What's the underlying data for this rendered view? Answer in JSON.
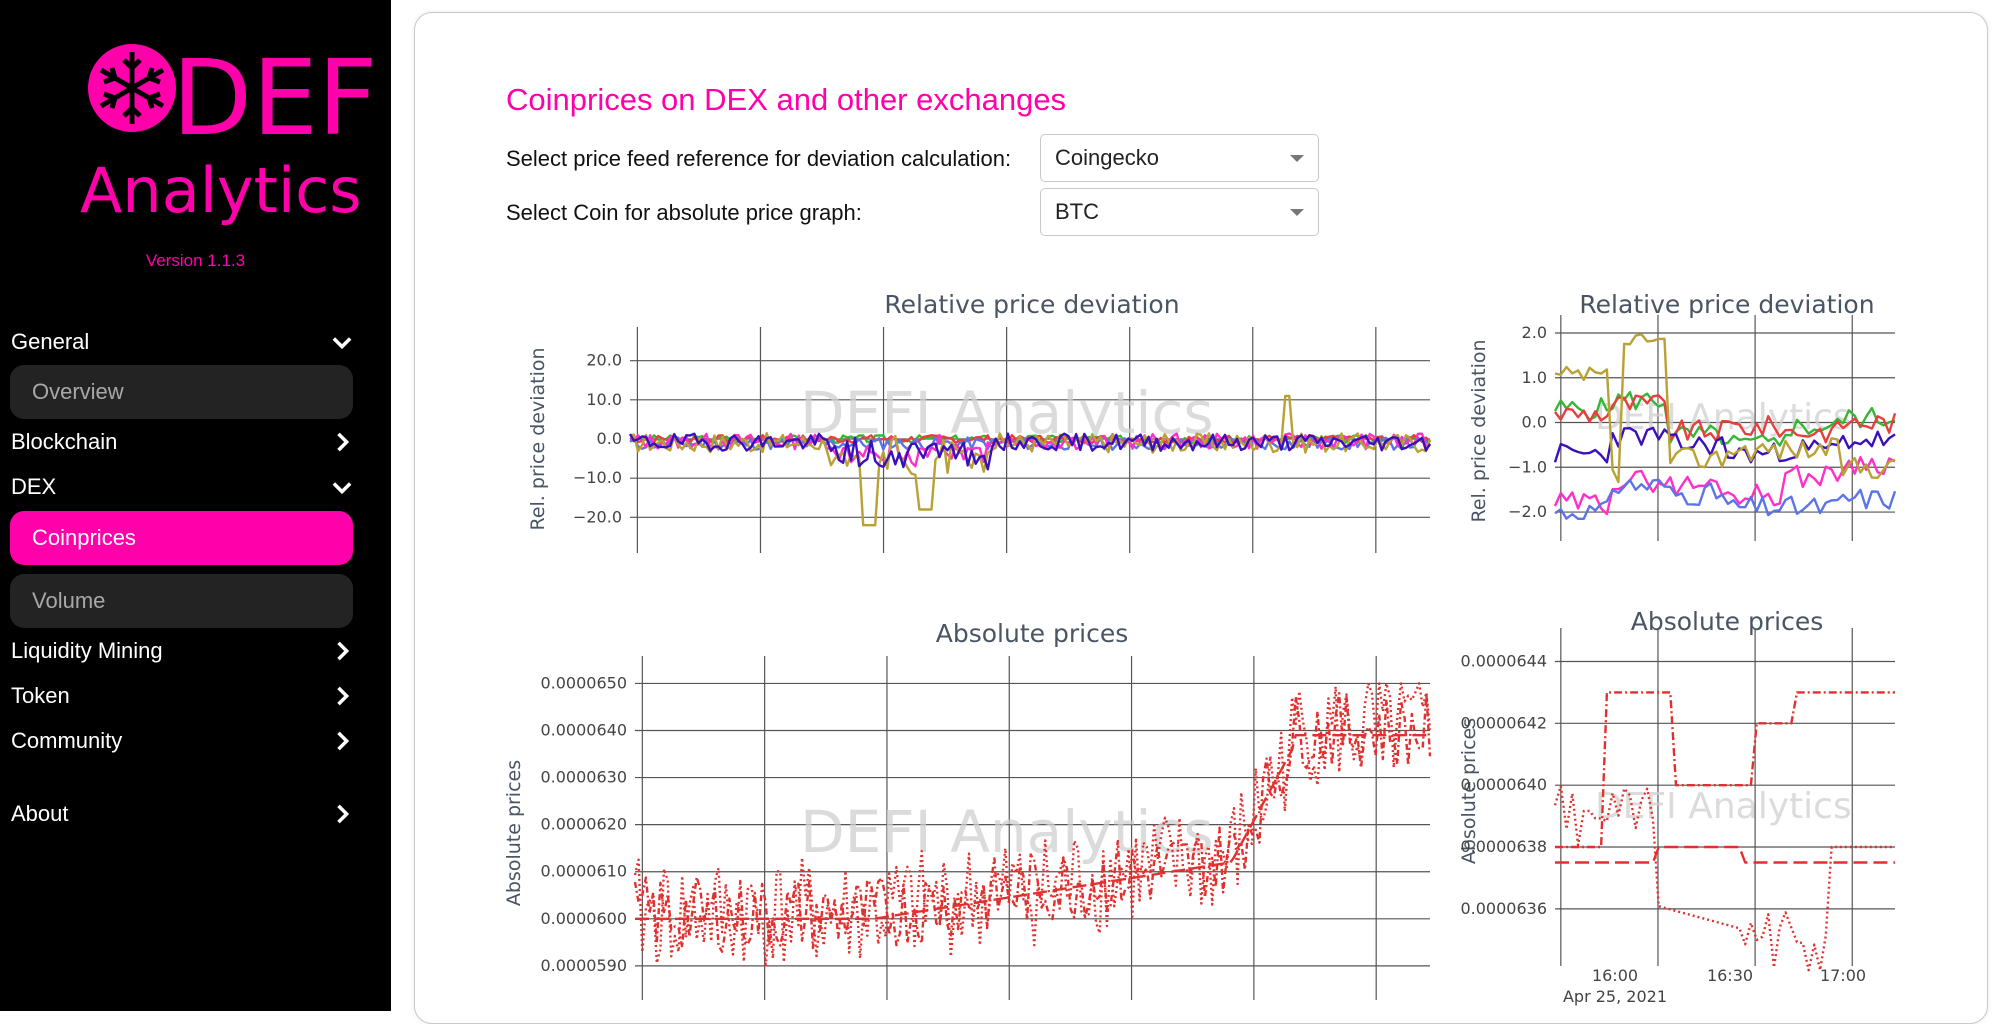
{
  "sidebar": {
    "logo_top": "DEFI",
    "logo_bottom": "Analytics",
    "version": "Version 1.1.3",
    "nav": {
      "general": "General",
      "overview": "Overview",
      "blockchain": "Blockchain",
      "dex": "DEX",
      "coinprices": "Coinprices",
      "volume": "Volume",
      "liquidity_mining": "Liquidity Mining",
      "token": "Token",
      "community": "Community",
      "about": "About"
    }
  },
  "main": {
    "title": "Coinprices on DEX and other exchanges",
    "reference_label": "Select price feed reference for deviation calculation:",
    "reference_value": "Coingecko",
    "coin_label": "Select Coin for absolute price graph:",
    "coin_value": "BTC"
  },
  "colors": {
    "brand": "#ff00aa",
    "sidebar_bg": "#000000",
    "series_olive": "#b9a133",
    "series_blue": "#5b74e8",
    "series_green": "#35b635",
    "series_red": "#e83e3e",
    "series_purple": "#3b0fbb",
    "series_magenta": "#ff2fc7",
    "abs_price": "#e0312f"
  },
  "chart_data": [
    {
      "type": "line",
      "title": "Relative price deviation",
      "ylabel": "Rel. price deviation",
      "ylim": [
        -24,
        24
      ],
      "yticks": [
        "20.0",
        "10.0",
        "0.0",
        "−10.0",
        "−20.0"
      ],
      "ytick_values": [
        20,
        10,
        0,
        -10,
        -20
      ],
      "watermark": "DEFI Analytics",
      "grid": true,
      "x_points": 200
    },
    {
      "type": "line",
      "title": "Relative price deviation",
      "ylabel": "Rel. price deviation",
      "ylim": [
        -2.2,
        2.0
      ],
      "yticks": [
        "2.0",
        "1.0",
        "0.0",
        "−1.0",
        "−2.0"
      ],
      "ytick_values": [
        2,
        1,
        0,
        -1,
        -2
      ],
      "watermark": "DEFI Analytics",
      "grid": true,
      "x_points": 60
    },
    {
      "type": "line",
      "title": "Absolute prices",
      "ylabel": "Absolute prices",
      "ylim": [
        5.87e-05,
        6.52e-05
      ],
      "yticks": [
        "0.0000650",
        "0.0000640",
        "0.0000630",
        "0.0000620",
        "0.0000610",
        "0.0000600",
        "0.0000590"
      ],
      "ytick_values": [
        6.5e-05,
        6.4e-05,
        6.3e-05,
        6.2e-05,
        6.1e-05,
        6e-05,
        5.9e-05
      ],
      "watermark": "DEFI Analytics",
      "grid": true,
      "x_points": 220
    },
    {
      "type": "line",
      "title": "Absolute prices",
      "ylabel": "Absolute prices",
      "ylim": [
        6.348e-05,
        6.445e-05
      ],
      "yticks": [
        "0.0000644",
        "0.0000642",
        "0.0000640",
        "0.0000638",
        "0.0000636"
      ],
      "ytick_values": [
        6.44e-05,
        6.42e-05,
        6.4e-05,
        6.38e-05,
        6.36e-05
      ],
      "xticks": [
        "16:00",
        "16:30",
        "17:00"
      ],
      "xdate": "Apr 25, 2021",
      "watermark": "DEFI Analytics",
      "grid": true,
      "x_points": 60
    }
  ]
}
